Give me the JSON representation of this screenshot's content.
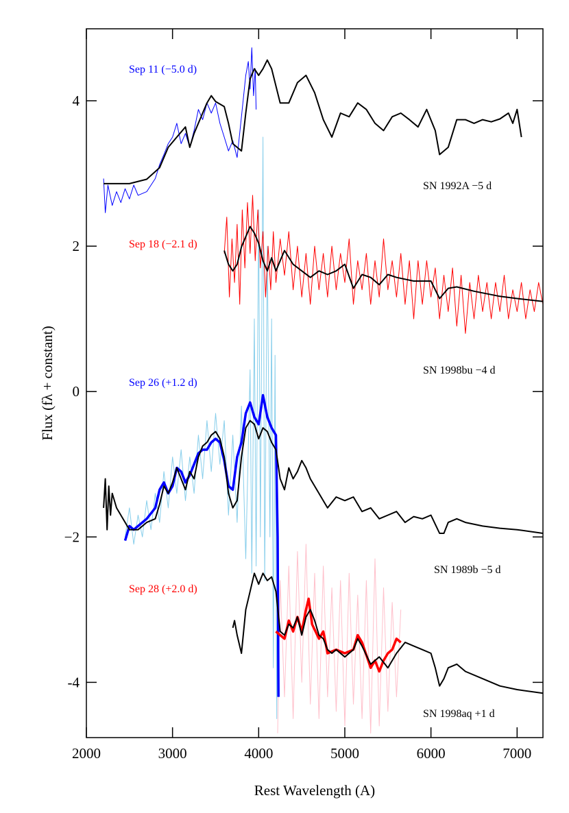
{
  "chart_data": {
    "type": "line",
    "x_label": "Rest Wavelength (A)",
    "y_label": "Flux (fλ + constant)",
    "xlim": [
      2000,
      7300
    ],
    "ylim": [
      -4.76,
      4.99
    ],
    "xticks": [
      2000,
      3000,
      4000,
      5000,
      6000,
      7000
    ],
    "yticks": [
      {
        "value": -4,
        "label": "-4"
      },
      {
        "value": -2,
        "label": "−2"
      },
      0,
      2,
      4
    ],
    "annotations": [
      {
        "text": "Sep 11  (−5.0 d)",
        "color": "#0000ff"
      },
      {
        "text": "SN 1992A −5 d",
        "color": "#000000"
      },
      {
        "text": "Sep 18  (−2.1 d)",
        "color": "#ff0000"
      },
      {
        "text": "SN 1998bu −4 d",
        "color": "#000000"
      },
      {
        "text": "Sep 26  (+1.2 d)",
        "color": "#0000ff"
      },
      {
        "text": "SN 1989b −5 d",
        "color": "#000000"
      },
      {
        "text": "Sep 28  (+2.0 d)",
        "color": "#ff0000"
      },
      {
        "text": "SN 1998aq +1 d",
        "color": "#000000"
      }
    ],
    "series": [
      {
        "color": "#87ceeb",
        "width": 1,
        "x": [
          2450,
          2500,
          2550,
          2600,
          2650,
          2700,
          2750,
          2800,
          2850,
          2900,
          2950,
          3000,
          3050,
          3100,
          3150,
          3200,
          3250,
          3300,
          3350,
          3400,
          3450,
          3500,
          3550,
          3600,
          3650,
          3700,
          3750,
          3800,
          3850,
          3900,
          3920,
          3950,
          3970,
          4000,
          4020,
          4050,
          4070,
          4100,
          4130,
          4150,
          4170,
          4190,
          4210,
          4220
        ],
        "values": [
          -2.0,
          -1.6,
          -2.1,
          -1.7,
          -2.0,
          -1.5,
          -1.9,
          -1.4,
          -1.8,
          -1.1,
          -1.6,
          -0.9,
          -1.4,
          -0.8,
          -1.5,
          -0.9,
          -1.4,
          -0.6,
          -1.2,
          -0.4,
          -1.1,
          -0.3,
          -1.0,
          -0.4,
          -1.7,
          -0.6,
          -1.8,
          -0.2,
          -2.3,
          0.3,
          -2.5,
          1.0,
          -2.4,
          2.5,
          -2.0,
          3.5,
          -2.6,
          2.0,
          -2.0,
          1.0,
          -3.8,
          0.5,
          -4.5,
          -2.0
        ]
      },
      {
        "color": "#ffc0cb",
        "width": 1,
        "x": [
          4220,
          4250,
          4300,
          4350,
          4400,
          4450,
          4500,
          4550,
          4600,
          4650,
          4700,
          4750,
          4800,
          4850,
          4900,
          4950,
          5000,
          5050,
          5100,
          5150,
          5200,
          5250,
          5300,
          5350,
          5400,
          5450,
          5500,
          5550,
          5600,
          5650
        ],
        "values": [
          -4.7,
          -2.6,
          -4.2,
          -2.4,
          -4.5,
          -2.2,
          -4.0,
          -2.1,
          -4.3,
          -2.5,
          -4.5,
          -2.4,
          -4.2,
          -2.7,
          -4.4,
          -2.6,
          -4.6,
          -2.5,
          -4.3,
          -2.8,
          -4.5,
          -2.6,
          -4.7,
          -2.3,
          -4.6,
          -2.7,
          -4.4,
          -2.9,
          -4.2,
          -3.0
        ]
      },
      {
        "color": "#0000ff",
        "width": 1,
        "x": [
          2200,
          2220,
          2250,
          2300,
          2350,
          2400,
          2450,
          2500,
          2550,
          2600,
          2700,
          2800,
          2850,
          2900,
          2950,
          3000,
          3050,
          3100,
          3150,
          3200,
          3250,
          3300,
          3350,
          3400,
          3450,
          3500,
          3550,
          3600,
          3650,
          3700,
          3750,
          3800,
          3850,
          3880,
          3900,
          3920,
          3940,
          3960,
          3970
        ],
        "values": [
          2.93,
          2.46,
          2.84,
          2.56,
          2.75,
          2.6,
          2.79,
          2.65,
          2.84,
          2.7,
          2.75,
          2.93,
          3.12,
          3.26,
          3.41,
          3.5,
          3.69,
          3.41,
          3.55,
          3.36,
          3.59,
          3.88,
          3.74,
          3.97,
          3.83,
          3.97,
          3.69,
          3.5,
          3.31,
          3.45,
          3.22,
          3.78,
          4.35,
          4.54,
          4.16,
          4.73,
          4.07,
          4.44,
          3.88
        ]
      },
      {
        "color": "#ff0000",
        "width": 1,
        "x": [
          3600,
          3630,
          3660,
          3690,
          3720,
          3750,
          3780,
          3810,
          3840,
          3870,
          3900,
          3930,
          3960,
          3990,
          4020,
          4050,
          4080,
          4110,
          4140,
          4170,
          4200,
          4250,
          4300,
          4350,
          4400,
          4450,
          4500,
          4550,
          4600,
          4650,
          4700,
          4750,
          4800,
          4850,
          4900,
          4950,
          5000,
          5050,
          5100,
          5150,
          5200,
          5250,
          5300,
          5350,
          5400,
          5450,
          5500,
          5550,
          5600,
          5650,
          5700,
          5750,
          5800,
          5850,
          5900,
          5950,
          6000,
          6050,
          6100,
          6150,
          6200,
          6250,
          6300,
          6350,
          6400,
          6450,
          6500,
          6550,
          6600,
          6650,
          6700,
          6750,
          6800,
          6850,
          6900,
          6950,
          7000,
          7050,
          7100,
          7150,
          7200,
          7250,
          7300
        ],
        "values": [
          1.9,
          2.4,
          1.3,
          2.1,
          1.5,
          2.3,
          1.2,
          2.5,
          1.7,
          2.6,
          1.9,
          2.7,
          1.8,
          2.5,
          1.7,
          2.2,
          1.3,
          2.0,
          1.4,
          2.2,
          1.5,
          2.1,
          1.6,
          2.2,
          1.4,
          2.0,
          1.3,
          1.9,
          1.2,
          2.0,
          1.4,
          1.9,
          1.3,
          2.0,
          1.4,
          1.9,
          1.5,
          2.1,
          1.2,
          1.8,
          1.4,
          1.9,
          1.2,
          1.8,
          1.3,
          2.1,
          1.4,
          1.8,
          1.3,
          1.9,
          1.2,
          1.8,
          1.0,
          1.8,
          1.2,
          1.8,
          1.3,
          1.7,
          1.0,
          1.6,
          1.1,
          1.7,
          0.9,
          1.6,
          0.8,
          1.5,
          1.0,
          1.6,
          1.1,
          1.5,
          1.0,
          1.5,
          1.1,
          1.6,
          1.0,
          1.4,
          1.1,
          1.5,
          1.0,
          1.4,
          1.1,
          1.5,
          1.2
        ]
      },
      {
        "color": "#0000ff",
        "width": 3.5,
        "x": [
          2450,
          2500,
          2550,
          2600,
          2700,
          2800,
          2850,
          2900,
          2950,
          3000,
          3050,
          3100,
          3150,
          3200,
          3250,
          3300,
          3350,
          3400,
          3450,
          3500,
          3550,
          3600,
          3650,
          3700,
          3750,
          3800,
          3850,
          3900,
          3950,
          4000,
          4050,
          4100,
          4150,
          4200,
          4220,
          4230
        ],
        "values": [
          -2.05,
          -1.85,
          -1.9,
          -1.85,
          -1.75,
          -1.6,
          -1.35,
          -1.25,
          -1.4,
          -1.3,
          -1.05,
          -1.1,
          -1.25,
          -1.15,
          -1.0,
          -0.85,
          -0.8,
          -0.8,
          -0.7,
          -0.65,
          -0.7,
          -0.95,
          -1.3,
          -1.35,
          -0.9,
          -0.7,
          -0.3,
          -0.15,
          -0.35,
          -0.45,
          -0.05,
          -0.35,
          -0.5,
          -0.6,
          -2.0,
          -4.2
        ]
      },
      {
        "color": "#ff0000",
        "width": 3.5,
        "x": [
          4200,
          4250,
          4300,
          4350,
          4400,
          4450,
          4500,
          4550,
          4580,
          4620,
          4700,
          4750,
          4800,
          4900,
          5000,
          5100,
          5150,
          5200,
          5300,
          5350,
          5400,
          5450,
          5500,
          5550,
          5600,
          5650
        ],
        "values": [
          -3.3,
          -3.35,
          -3.4,
          -3.15,
          -3.3,
          -3.1,
          -3.3,
          -3.0,
          -2.85,
          -3.2,
          -3.4,
          -3.3,
          -3.6,
          -3.55,
          -3.6,
          -3.55,
          -3.35,
          -3.45,
          -3.8,
          -3.7,
          -3.85,
          -3.7,
          -3.6,
          -3.55,
          -3.4,
          -3.45
        ]
      },
      {
        "color": "#000000",
        "width": 2,
        "x": [
          2200,
          2500,
          2700,
          2850,
          2950,
          3050,
          3150,
          3200,
          3250,
          3350,
          3400,
          3450,
          3500,
          3600,
          3650,
          3700,
          3800,
          3850,
          3900,
          3950,
          4000,
          4050,
          4100,
          4150,
          4250,
          4350,
          4450,
          4550,
          4650,
          4750,
          4850,
          4950,
          5050,
          5150,
          5250,
          5350,
          5450,
          5550,
          5650,
          5750,
          5850,
          5950,
          6050,
          6100,
          6200,
          6300,
          6400,
          6500,
          6600,
          6700,
          6800,
          6900,
          6950,
          7000,
          7050
        ],
        "values": [
          2.86,
          2.86,
          2.92,
          3.08,
          3.36,
          3.5,
          3.64,
          3.36,
          3.55,
          3.83,
          3.97,
          4.07,
          3.99,
          3.92,
          3.69,
          3.41,
          3.31,
          3.83,
          4.3,
          4.44,
          4.35,
          4.44,
          4.56,
          4.44,
          3.97,
          3.97,
          4.25,
          4.35,
          4.11,
          3.74,
          3.5,
          3.83,
          3.78,
          3.97,
          3.88,
          3.69,
          3.59,
          3.78,
          3.83,
          3.74,
          3.64,
          3.88,
          3.59,
          3.26,
          3.36,
          3.74,
          3.74,
          3.69,
          3.74,
          3.71,
          3.75,
          3.83,
          3.69,
          3.88,
          3.5
        ]
      },
      {
        "color": "#000000",
        "width": 2,
        "x": [
          3600,
          3650,
          3700,
          3750,
          3800,
          3850,
          3900,
          3950,
          4000,
          4050,
          4100,
          4150,
          4200,
          4250,
          4300,
          4400,
          4500,
          4600,
          4700,
          4800,
          4900,
          5000,
          5100,
          5200,
          5300,
          5400,
          5500,
          5600,
          5800,
          6000,
          6100,
          6200,
          6300,
          6500,
          6800,
          7000,
          7300
        ],
        "values": [
          1.94,
          1.75,
          1.66,
          1.75,
          1.99,
          2.13,
          2.27,
          2.18,
          2.04,
          1.8,
          1.66,
          1.84,
          1.66,
          1.8,
          1.94,
          1.75,
          1.66,
          1.57,
          1.66,
          1.61,
          1.66,
          1.75,
          1.42,
          1.61,
          1.57,
          1.47,
          1.61,
          1.57,
          1.52,
          1.52,
          1.28,
          1.42,
          1.44,
          1.38,
          1.31,
          1.28,
          1.24
        ]
      },
      {
        "color": "#000000",
        "width": 2,
        "x": [
          2200,
          2220,
          2240,
          2260,
          2280,
          2300,
          2350,
          2400,
          2500,
          2600,
          2700,
          2800,
          2850,
          2900,
          2950,
          3000,
          3050,
          3100,
          3150,
          3200,
          3250,
          3300,
          3350,
          3400,
          3450,
          3500,
          3550,
          3600,
          3650,
          3700,
          3750,
          3800,
          3850,
          3900,
          3950,
          4000,
          4050,
          4100,
          4150,
          4200,
          4250,
          4300,
          4350,
          4400,
          4450,
          4500,
          4550,
          4600,
          4700,
          4800,
          4900,
          5000,
          5100,
          5200,
          5300,
          5400,
          5500,
          5600,
          5700,
          5800,
          5900,
          6000,
          6100,
          6150,
          6200,
          6300,
          6400,
          6600,
          6800,
          7000,
          7300
        ],
        "values": [
          -1.6,
          -1.2,
          -1.9,
          -1.3,
          -1.7,
          -1.4,
          -1.6,
          -1.7,
          -1.9,
          -1.9,
          -1.8,
          -1.75,
          -1.55,
          -1.3,
          -1.4,
          -1.25,
          -1.05,
          -1.2,
          -1.35,
          -1.1,
          -1.2,
          -0.9,
          -0.75,
          -0.7,
          -0.6,
          -0.55,
          -0.65,
          -0.9,
          -1.4,
          -1.6,
          -1.5,
          -0.9,
          -0.5,
          -0.4,
          -0.45,
          -0.65,
          -0.5,
          -0.55,
          -0.7,
          -0.8,
          -1.2,
          -1.35,
          -1.05,
          -1.2,
          -1.1,
          -0.95,
          -1.05,
          -1.2,
          -1.4,
          -1.6,
          -1.45,
          -1.5,
          -1.45,
          -1.65,
          -1.6,
          -1.75,
          -1.7,
          -1.65,
          -1.8,
          -1.72,
          -1.75,
          -1.7,
          -1.95,
          -1.95,
          -1.8,
          -1.75,
          -1.8,
          -1.85,
          -1.88,
          -1.9,
          -1.95
        ]
      },
      {
        "color": "#000000",
        "width": 2,
        "x": [
          3700,
          3720,
          3750,
          3800,
          3850,
          3900,
          3950,
          4000,
          4050,
          4100,
          4150,
          4200,
          4250,
          4300,
          4350,
          4400,
          4450,
          4500,
          4550,
          4600,
          4650,
          4700,
          4750,
          4800,
          4850,
          4900,
          5000,
          5100,
          5150,
          5200,
          5300,
          5400,
          5500,
          5600,
          5700,
          5800,
          5900,
          6000,
          6050,
          6100,
          6150,
          6200,
          6300,
          6400,
          6600,
          6800,
          7000,
          7300
        ],
        "values": [
          -3.25,
          -3.15,
          -3.35,
          -3.6,
          -3.0,
          -2.75,
          -2.5,
          -2.65,
          -2.5,
          -2.6,
          -2.55,
          -2.75,
          -3.3,
          -3.35,
          -3.2,
          -3.25,
          -3.1,
          -3.35,
          -3.1,
          -3.0,
          -3.15,
          -3.35,
          -3.4,
          -3.55,
          -3.6,
          -3.55,
          -3.65,
          -3.55,
          -3.4,
          -3.5,
          -3.75,
          -3.65,
          -3.8,
          -3.6,
          -3.45,
          -3.5,
          -3.55,
          -3.6,
          -3.8,
          -4.05,
          -3.95,
          -3.8,
          -3.75,
          -3.85,
          -3.95,
          -4.05,
          -4.1,
          -4.15
        ]
      }
    ]
  }
}
